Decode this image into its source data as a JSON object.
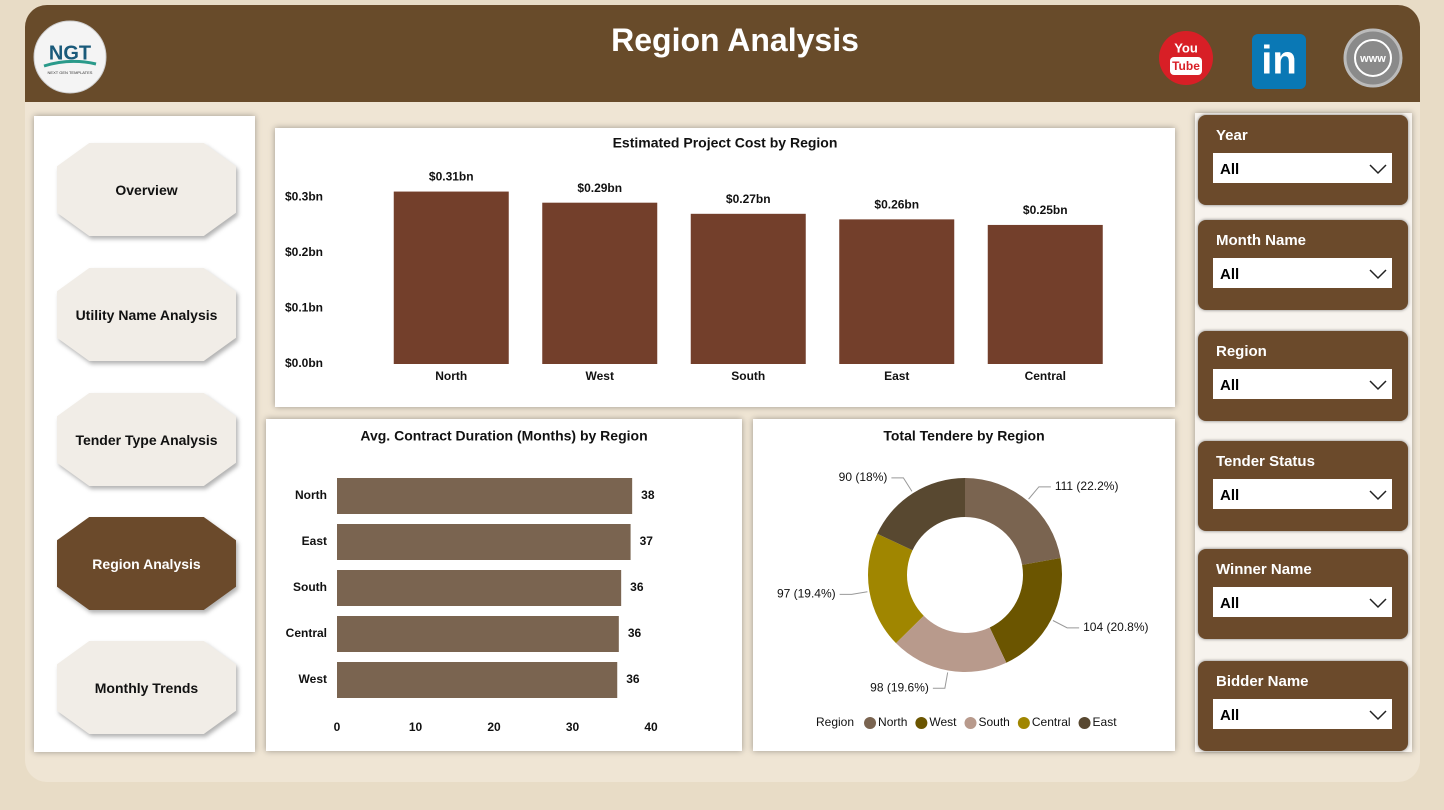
{
  "header": {
    "title": "Region Analysis",
    "logo": {
      "name": "NGT",
      "tagline": "NEXT GEN TEMPLATES"
    },
    "icons": {
      "youtube": [
        "You",
        "Tube"
      ],
      "linkedin": "in",
      "website": "www"
    }
  },
  "nav": [
    {
      "label": "Overview",
      "active": false
    },
    {
      "label": "Utility Name Analysis",
      "active": false
    },
    {
      "label": "Tender Type Analysis",
      "active": false
    },
    {
      "label": "Region Analysis",
      "active": true
    },
    {
      "label": "Monthly Trends",
      "active": false
    }
  ],
  "filters": [
    {
      "label": "Year",
      "value": "All"
    },
    {
      "label": "Month Name",
      "value": "All"
    },
    {
      "label": "Region",
      "value": "All"
    },
    {
      "label": "Tender Status",
      "value": "All"
    },
    {
      "label": "Winner Name",
      "value": "All"
    },
    {
      "label": "Bidder Name",
      "value": "All"
    }
  ],
  "chart_data": [
    {
      "type": "bar",
      "title": "Estimated Project Cost by Region",
      "categories": [
        "North",
        "West",
        "South",
        "East",
        "Central"
      ],
      "values": [
        0.31,
        0.29,
        0.27,
        0.26,
        0.25
      ],
      "value_labels": [
        "$0.31bn",
        "$0.29bn",
        "$0.27bn",
        "$0.26bn",
        "$0.25bn"
      ],
      "color": "#733f2b",
      "ylim": [
        0,
        0.32
      ],
      "yticks": [
        {
          "value": 0,
          "label": "$0.0bn"
        },
        {
          "value": 0.1,
          "label": "$0.1bn"
        },
        {
          "value": 0.2,
          "label": "$0.2bn"
        },
        {
          "value": 0.3,
          "label": "$0.3bn"
        }
      ]
    },
    {
      "type": "hbar",
      "title": "Avg. Contract Duration (Months) by Region",
      "categories": [
        "North",
        "East",
        "South",
        "Central",
        "West"
      ],
      "values": [
        37.6,
        37.4,
        36.2,
        35.9,
        35.7
      ],
      "value_labels": [
        "38",
        "37",
        "36",
        "36",
        "36"
      ],
      "color": "#7a6450",
      "xlim": [
        0,
        40
      ],
      "xticks": [
        0,
        10,
        20,
        30,
        40
      ]
    },
    {
      "type": "donut",
      "title": "Total Tendere by Region",
      "categories": [
        "North",
        "West",
        "South",
        "Central",
        "East"
      ],
      "values": [
        111,
        104,
        98,
        97,
        90
      ],
      "value_labels": [
        "111 (22.2%)",
        "104 (20.8%)",
        "98 (19.6%)",
        "97 (19.4%)",
        "90 (18%)"
      ],
      "colors": [
        "#7a6450",
        "#6b5500",
        "#b89a8c",
        "#a08600",
        "#584830"
      ],
      "legend_title": "Region"
    }
  ]
}
